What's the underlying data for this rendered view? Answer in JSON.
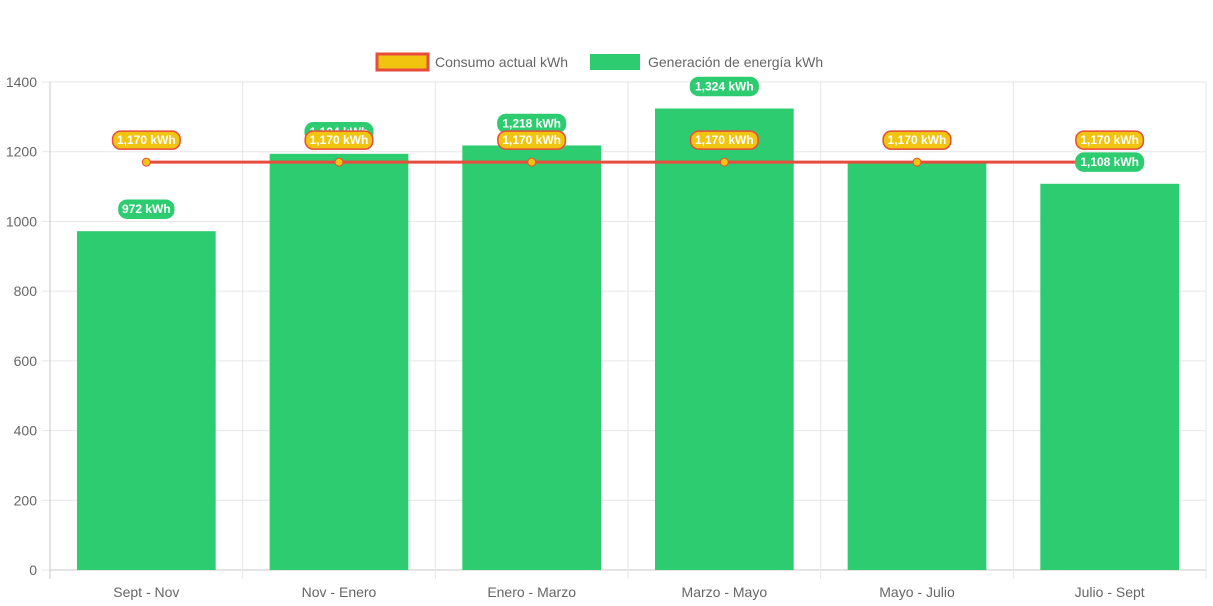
{
  "chart_data": {
    "type": "bar",
    "categories": [
      "Sept - Nov",
      "Nov - Enero",
      "Enero - Marzo",
      "Marzo - Mayo",
      "Mayo - Julio",
      "Julio - Sept"
    ],
    "ylim": [
      0,
      1400
    ],
    "yticks": [
      0,
      200,
      400,
      600,
      800,
      1000,
      1200,
      1400
    ],
    "grid": true,
    "legend_position": "top-center",
    "series": [
      {
        "name": "Consumo actual kWh",
        "type": "line",
        "values": [
          1170,
          1170,
          1170,
          1170,
          1170,
          1170
        ],
        "labels": [
          "1,170 kWh",
          "1,170 kWh",
          "1,170 kWh",
          "1,170 kWh",
          "1,170 kWh",
          "1,170 kWh"
        ],
        "color": "#e74c3c",
        "point_color": "#f1c40f"
      },
      {
        "name": "Generación de energía kWh",
        "type": "bar",
        "values": [
          972,
          1194,
          1218,
          1324,
          1170,
          1108
        ],
        "labels": [
          "972 kWh",
          "1,194 kWh",
          "1,218 kWh",
          "1,324 kWh",
          "1,170 kWh",
          "1,108 kWh"
        ],
        "color": "#2ecc71"
      }
    ]
  }
}
